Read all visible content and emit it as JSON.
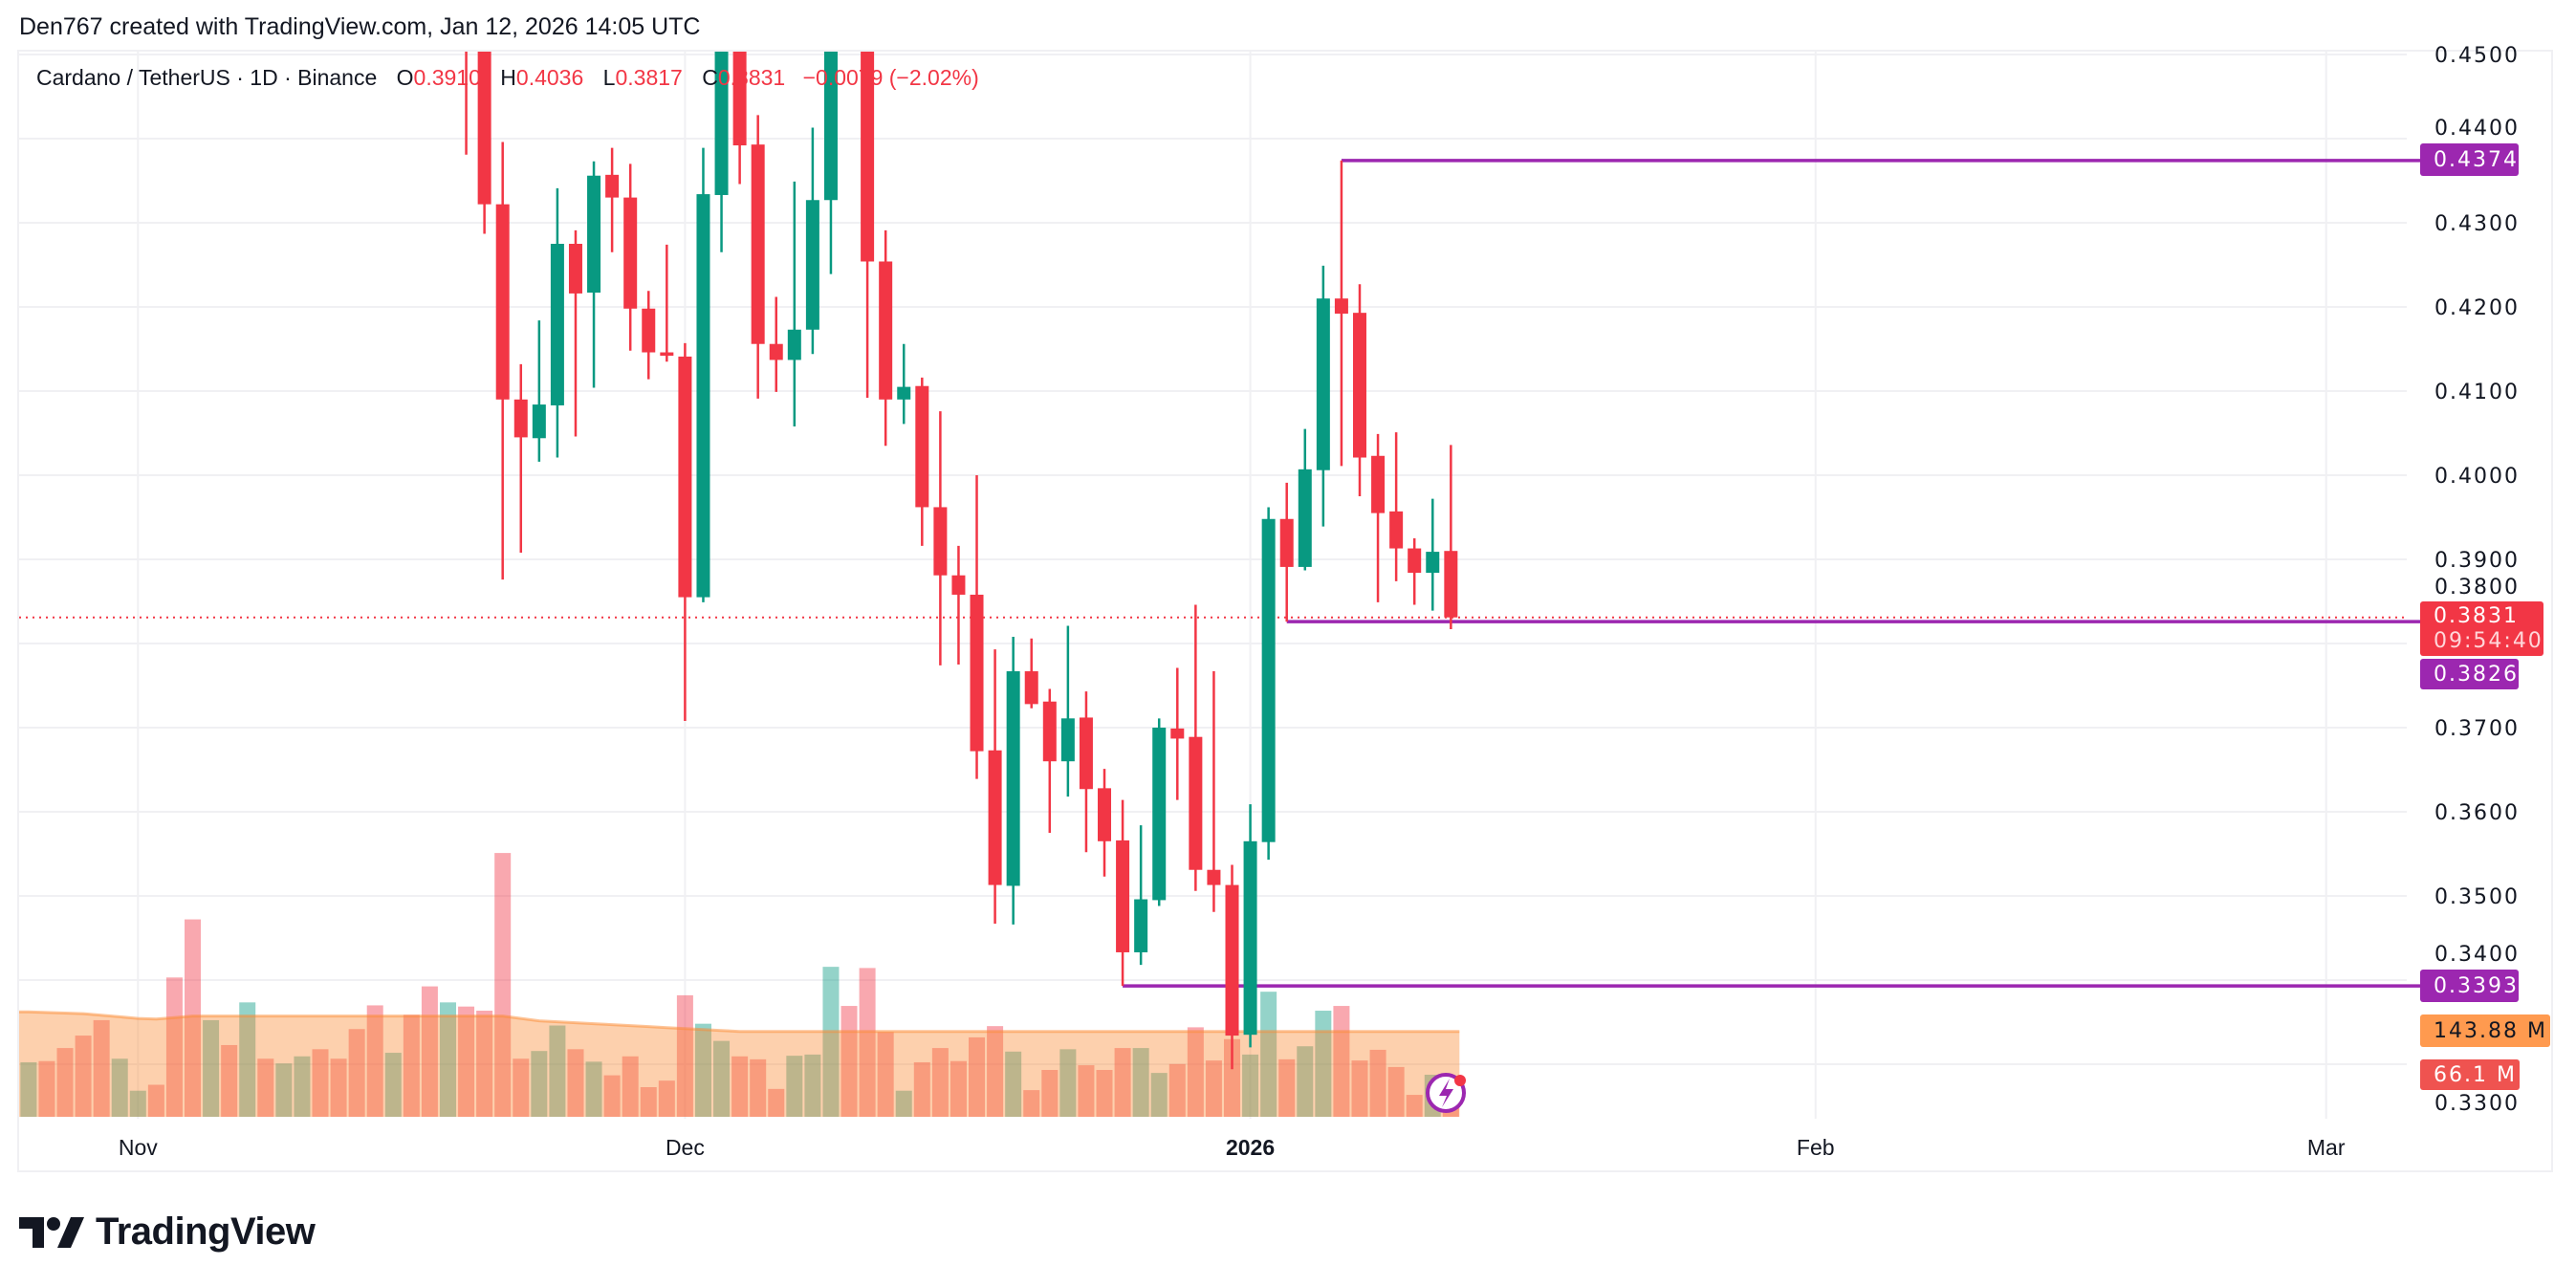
{
  "attribution": "Den767 created with TradingView.com, Jan 12, 2026 14:05 UTC",
  "legend": {
    "symbol": "Cardano / TetherUS · 1D · Binance",
    "o_label": "O",
    "o_value": "0.3910",
    "h_label": "H",
    "h_value": "0.4036",
    "l_label": "L",
    "l_value": "0.3817",
    "c_label": "C",
    "c_value": "0.3831",
    "change": "−0.0079 (−2.02%)"
  },
  "logo_text": "TradingView",
  "colors": {
    "up": "#089981",
    "down": "#f23645",
    "level": "#9c27b0",
    "ma": "#fb8932",
    "grid": "#f0f0f3"
  },
  "badges": {
    "last_price": "0.3831",
    "countdown": "09:54:40",
    "level_high": "0.4374",
    "level_mid": "0.3826",
    "level_low": "0.3393",
    "volume_ma": "143.88 M",
    "volume_last": "66.1 M"
  },
  "chart_data": {
    "type": "candlestick",
    "interval": "1D",
    "ylim": [
      0.33,
      0.4508
    ],
    "xlim": [
      "2025-10-26",
      "2026-03-10"
    ],
    "grid": true,
    "yticks": [
      "0.4500",
      "0.4400",
      "0.4300",
      "0.4200",
      "0.4100",
      "0.4000",
      "0.3900",
      "0.3800",
      "0.3700",
      "0.3600",
      "0.3500",
      "0.3400",
      "0.3300"
    ],
    "xticks": [
      {
        "date": "2025-11-01",
        "label": "Nov",
        "bold": false
      },
      {
        "date": "2025-12-01",
        "label": "Dec",
        "bold": false
      },
      {
        "date": "2026-01-01",
        "label": "2026",
        "bold": true
      },
      {
        "date": "2026-02-01",
        "label": "Feb",
        "bold": false
      },
      {
        "date": "2026-03-01",
        "label": "Mar",
        "bold": false
      }
    ],
    "last_price": 0.3831,
    "levels": [
      {
        "price": 0.4374,
        "from": "2026-01-06"
      },
      {
        "price": 0.3826,
        "from": "2026-01-03"
      },
      {
        "price": 0.3393,
        "from": "2025-12-25"
      }
    ],
    "candles": [
      [
        "2025-11-19",
        0.462,
        0.47,
        0.4381,
        0.455
      ],
      [
        "2025-11-20",
        0.455,
        0.458,
        0.4287,
        0.4322
      ],
      [
        "2025-11-21",
        0.4322,
        0.4396,
        0.3876,
        0.409
      ],
      [
        "2025-11-22",
        0.409,
        0.4132,
        0.3908,
        0.4045
      ],
      [
        "2025-11-23",
        0.4044,
        0.4184,
        0.4016,
        0.4084
      ],
      [
        "2025-11-24",
        0.4083,
        0.4341,
        0.4021,
        0.4275
      ],
      [
        "2025-11-25",
        0.4275,
        0.4291,
        0.4046,
        0.4216
      ],
      [
        "2025-11-26",
        0.4217,
        0.4373,
        0.4104,
        0.4356
      ],
      [
        "2025-11-27",
        0.4357,
        0.4389,
        0.4265,
        0.433
      ],
      [
        "2025-11-28",
        0.433,
        0.437,
        0.4148,
        0.4198
      ],
      [
        "2025-11-29",
        0.4198,
        0.4219,
        0.4114,
        0.4146
      ],
      [
        "2025-11-30",
        0.4146,
        0.4274,
        0.4135,
        0.4142
      ],
      [
        "2025-12-01",
        0.4141,
        0.4157,
        0.3708,
        0.3855
      ],
      [
        "2025-12-02",
        0.3855,
        0.4389,
        0.3849,
        0.4334
      ],
      [
        "2025-12-03",
        0.4333,
        0.458,
        0.4265,
        0.4535
      ],
      [
        "2025-12-04",
        0.453,
        0.456,
        0.4346,
        0.4392
      ],
      [
        "2025-12-05",
        0.4393,
        0.4428,
        0.4091,
        0.4156
      ],
      [
        "2025-12-06",
        0.4156,
        0.4212,
        0.4099,
        0.4137
      ],
      [
        "2025-12-07",
        0.4137,
        0.4349,
        0.4058,
        0.4173
      ],
      [
        "2025-12-08",
        0.4173,
        0.4413,
        0.4144,
        0.4327
      ],
      [
        "2025-12-09",
        0.4327,
        0.46,
        0.4239,
        0.456
      ],
      [
        "2025-12-11",
        0.458,
        0.462,
        0.4092,
        0.4254
      ],
      [
        "2025-12-12",
        0.4254,
        0.4291,
        0.4035,
        0.409
      ],
      [
        "2025-12-13",
        0.409,
        0.4156,
        0.4061,
        0.4105
      ],
      [
        "2025-12-14",
        0.4106,
        0.4116,
        0.3916,
        0.3962
      ],
      [
        "2025-12-15",
        0.3962,
        0.4076,
        0.3774,
        0.3881
      ],
      [
        "2025-12-16",
        0.3881,
        0.3916,
        0.3775,
        0.3858
      ],
      [
        "2025-12-17",
        0.3858,
        0.4,
        0.3639,
        0.3672
      ],
      [
        "2025-12-18",
        0.3673,
        0.3793,
        0.3467,
        0.3513
      ],
      [
        "2025-12-19",
        0.3512,
        0.3808,
        0.3466,
        0.3767
      ],
      [
        "2025-12-20",
        0.3767,
        0.3806,
        0.3723,
        0.3728
      ],
      [
        "2025-12-21",
        0.3731,
        0.3746,
        0.3575,
        0.366
      ],
      [
        "2025-12-22",
        0.366,
        0.3821,
        0.3618,
        0.3711
      ],
      [
        "2025-12-23",
        0.3712,
        0.3743,
        0.3552,
        0.3627
      ],
      [
        "2025-12-24",
        0.3628,
        0.3651,
        0.3523,
        0.3565
      ],
      [
        "2025-12-25",
        0.3566,
        0.3614,
        0.3393,
        0.3433
      ],
      [
        "2025-12-26",
        0.3433,
        0.3584,
        0.3418,
        0.3496
      ],
      [
        "2025-12-27",
        0.3495,
        0.3711,
        0.3488,
        0.37
      ],
      [
        "2025-12-28",
        0.3699,
        0.3771,
        0.3614,
        0.3687
      ],
      [
        "2025-12-29",
        0.3689,
        0.3846,
        0.3506,
        0.3531
      ],
      [
        "2025-12-30",
        0.3531,
        0.3767,
        0.3481,
        0.3513
      ],
      [
        "2025-12-31",
        0.3513,
        0.3537,
        0.3294,
        0.3334
      ],
      [
        "2026-01-01",
        0.3335,
        0.3609,
        0.332,
        0.3565
      ],
      [
        "2026-01-02",
        0.3564,
        0.3962,
        0.3543,
        0.3948
      ],
      [
        "2026-01-03",
        0.3948,
        0.3991,
        0.3826,
        0.3891
      ],
      [
        "2026-01-04",
        0.3891,
        0.4055,
        0.3887,
        0.4007
      ],
      [
        "2026-01-05",
        0.4006,
        0.4249,
        0.3939,
        0.421
      ],
      [
        "2026-01-06",
        0.421,
        0.4374,
        0.4011,
        0.4192
      ],
      [
        "2026-01-07",
        0.4193,
        0.4227,
        0.3975,
        0.4021
      ],
      [
        "2026-01-08",
        0.4023,
        0.4049,
        0.3849,
        0.3955
      ],
      [
        "2026-01-09",
        0.3957,
        0.4051,
        0.3874,
        0.3913
      ],
      [
        "2026-01-10",
        0.3913,
        0.3925,
        0.3846,
        0.3884
      ],
      [
        "2026-01-11",
        0.3884,
        0.3972,
        0.3839,
        0.3909
      ],
      [
        "2026-01-12",
        0.391,
        0.4036,
        0.3817,
        0.3831
      ]
    ],
    "volume_unit": "M",
    "volume": [
      [
        "2025-10-26",
        92,
        "up"
      ],
      [
        "2025-10-27",
        94,
        "down"
      ],
      [
        "2025-10-28",
        116,
        "down"
      ],
      [
        "2025-10-29",
        137,
        "down"
      ],
      [
        "2025-10-30",
        163,
        "down"
      ],
      [
        "2025-10-31",
        98,
        "up"
      ],
      [
        "2025-11-01",
        44,
        "up"
      ],
      [
        "2025-11-02",
        54,
        "down"
      ],
      [
        "2025-11-03",
        235,
        "down"
      ],
      [
        "2025-11-04",
        333,
        "down"
      ],
      [
        "2025-11-05",
        163,
        "up"
      ],
      [
        "2025-11-06",
        121,
        "down"
      ],
      [
        "2025-11-07",
        193,
        "up"
      ],
      [
        "2025-11-08",
        98,
        "down"
      ],
      [
        "2025-11-09",
        90,
        "up"
      ],
      [
        "2025-11-10",
        102,
        "up"
      ],
      [
        "2025-11-11",
        114,
        "down"
      ],
      [
        "2025-11-12",
        98,
        "down"
      ],
      [
        "2025-11-13",
        148,
        "down"
      ],
      [
        "2025-11-14",
        188,
        "down"
      ],
      [
        "2025-11-15",
        108,
        "up"
      ],
      [
        "2025-11-16",
        172,
        "down"
      ],
      [
        "2025-11-17",
        220,
        "down"
      ],
      [
        "2025-11-18",
        193,
        "up"
      ],
      [
        "2025-11-19",
        186,
        "down"
      ],
      [
        "2025-11-20",
        179,
        "down"
      ],
      [
        "2025-11-21",
        445,
        "down"
      ],
      [
        "2025-11-22",
        98,
        "down"
      ],
      [
        "2025-11-23",
        111,
        "up"
      ],
      [
        "2025-11-24",
        154,
        "up"
      ],
      [
        "2025-11-25",
        114,
        "down"
      ],
      [
        "2025-11-26",
        93,
        "up"
      ],
      [
        "2025-11-27",
        70,
        "down"
      ],
      [
        "2025-11-28",
        102,
        "down"
      ],
      [
        "2025-11-29",
        50,
        "down"
      ],
      [
        "2025-11-30",
        61,
        "down"
      ],
      [
        "2025-12-01",
        205,
        "down"
      ],
      [
        "2025-12-02",
        157,
        "up"
      ],
      [
        "2025-12-03",
        128,
        "up"
      ],
      [
        "2025-12-04",
        102,
        "down"
      ],
      [
        "2025-12-05",
        97,
        "down"
      ],
      [
        "2025-12-06",
        47,
        "down"
      ],
      [
        "2025-12-07",
        103,
        "up"
      ],
      [
        "2025-12-08",
        105,
        "up"
      ],
      [
        "2025-12-09",
        253,
        "up"
      ],
      [
        "2025-12-10",
        187,
        "down"
      ],
      [
        "2025-12-11",
        251,
        "down"
      ],
      [
        "2025-12-12",
        143,
        "down"
      ],
      [
        "2025-12-13",
        44,
        "up"
      ],
      [
        "2025-12-14",
        92,
        "down"
      ],
      [
        "2025-12-15",
        116,
        "down"
      ],
      [
        "2025-12-16",
        94,
        "down"
      ],
      [
        "2025-12-17",
        134,
        "down"
      ],
      [
        "2025-12-18",
        153,
        "down"
      ],
      [
        "2025-12-19",
        110,
        "up"
      ],
      [
        "2025-12-20",
        45,
        "down"
      ],
      [
        "2025-12-21",
        79,
        "down"
      ],
      [
        "2025-12-22",
        114,
        "up"
      ],
      [
        "2025-12-23",
        87,
        "down"
      ],
      [
        "2025-12-24",
        79,
        "down"
      ],
      [
        "2025-12-25",
        116,
        "down"
      ],
      [
        "2025-12-26",
        116,
        "up"
      ],
      [
        "2025-12-27",
        74,
        "up"
      ],
      [
        "2025-12-28",
        89,
        "down"
      ],
      [
        "2025-12-29",
        151,
        "down"
      ],
      [
        "2025-12-30",
        95,
        "down"
      ],
      [
        "2025-12-31",
        131,
        "down"
      ],
      [
        "2026-01-01",
        105,
        "up"
      ],
      [
        "2026-01-02",
        211,
        "up"
      ],
      [
        "2026-01-03",
        97,
        "down"
      ],
      [
        "2026-01-04",
        119,
        "up"
      ],
      [
        "2026-01-05",
        179,
        "up"
      ],
      [
        "2026-01-06",
        187,
        "down"
      ],
      [
        "2026-01-07",
        95,
        "down"
      ],
      [
        "2026-01-08",
        113,
        "down"
      ],
      [
        "2026-01-09",
        84,
        "down"
      ],
      [
        "2026-01-10",
        37,
        "down"
      ],
      [
        "2026-01-11",
        71,
        "up"
      ],
      [
        "2026-01-12",
        66.1,
        "down"
      ]
    ],
    "volume_ma": [
      [
        "2025-10-26",
        177
      ],
      [
        "2025-10-29",
        174
      ],
      [
        "2025-11-01",
        166
      ],
      [
        "2025-11-02",
        165
      ],
      [
        "2025-11-04",
        170
      ],
      [
        "2025-11-21",
        170
      ],
      [
        "2025-11-23",
        162
      ],
      [
        "2025-12-04",
        144
      ],
      [
        "2026-01-12",
        143.88
      ]
    ]
  }
}
